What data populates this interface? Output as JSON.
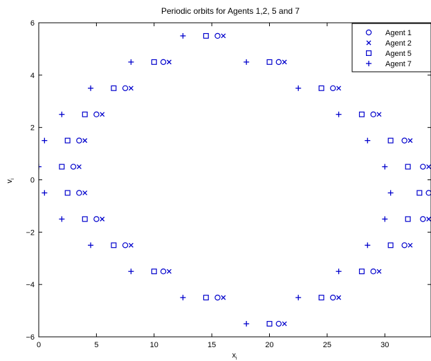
{
  "chart_data": {
    "type": "scatter",
    "title": "Periodic orbits for Agents 1,2, 5 and 7",
    "xlabel": "x",
    "xlabel_sub": "i",
    "ylabel": "v",
    "ylabel_sub": "i",
    "xlim": [
      0,
      34
    ],
    "ylim": [
      -6,
      6
    ],
    "xticks": [
      0,
      5,
      10,
      15,
      20,
      25,
      30
    ],
    "yticks": [
      -6,
      -4,
      -2,
      0,
      2,
      4,
      6
    ],
    "xtick_labels": [
      "0",
      "5",
      "10",
      "15",
      "20",
      "25",
      "30"
    ],
    "ytick_labels": [
      "−6",
      "−4",
      "−2",
      "0",
      "2",
      "4",
      "6"
    ],
    "grid": false,
    "legend_position": "top-right",
    "color": "#0000cc",
    "series": [
      {
        "name": "Agent 1",
        "marker": "circle",
        "x": [
          15.5,
          20.8,
          25.5,
          29.0,
          31.7,
          33.3,
          33.8,
          33.3,
          31.7,
          29.0,
          25.5,
          20.8,
          15.5,
          10.8,
          7.5,
          5.0,
          3.5,
          3.0,
          3.5,
          5.0,
          7.5,
          10.8
        ],
        "y": [
          5.5,
          4.5,
          3.5,
          2.5,
          1.5,
          0.5,
          -0.5,
          -1.5,
          -2.5,
          -3.5,
          -4.5,
          -5.5,
          -4.5,
          -3.5,
          -2.5,
          -1.5,
          -0.5,
          0.5,
          1.5,
          2.5,
          3.5,
          4.5
        ]
      },
      {
        "name": "Agent 2",
        "marker": "x",
        "x": [
          16.0,
          21.3,
          26.0,
          29.5,
          32.2,
          33.8,
          34.3,
          33.8,
          32.2,
          29.5,
          26.0,
          21.3,
          16.0,
          11.3,
          8.0,
          5.5,
          4.0,
          3.5,
          4.0,
          5.5,
          8.0,
          11.3
        ],
        "y": [
          5.5,
          4.5,
          3.5,
          2.5,
          1.5,
          0.5,
          -0.5,
          -1.5,
          -2.5,
          -3.5,
          -4.5,
          -5.5,
          -4.5,
          -3.5,
          -2.5,
          -1.5,
          -0.5,
          0.5,
          1.5,
          2.5,
          3.5,
          4.5
        ]
      },
      {
        "name": "Agent 5",
        "marker": "square",
        "x": [
          14.5,
          20.0,
          24.5,
          28.0,
          30.5,
          32.0,
          33.0,
          32.0,
          30.5,
          28.0,
          24.5,
          20.0,
          14.5,
          10.0,
          6.5,
          4.0,
          2.5,
          2.0,
          2.5,
          4.0,
          6.5,
          10.0
        ],
        "y": [
          5.5,
          4.5,
          3.5,
          2.5,
          1.5,
          0.5,
          -0.5,
          -1.5,
          -2.5,
          -3.5,
          -4.5,
          -5.5,
          -4.5,
          -3.5,
          -2.5,
          -1.5,
          -0.5,
          0.5,
          1.5,
          2.5,
          3.5,
          4.5
        ]
      },
      {
        "name": "Agent 7",
        "marker": "plus",
        "x": [
          12.5,
          18.0,
          22.5,
          26.0,
          28.5,
          30.0,
          30.5,
          30.0,
          28.5,
          26.0,
          22.5,
          18.0,
          12.5,
          8.0,
          4.5,
          2.0,
          0.5,
          0.0,
          0.5,
          2.0,
          4.5,
          8.0
        ],
        "y": [
          5.5,
          4.5,
          3.5,
          2.5,
          1.5,
          0.5,
          -0.5,
          -1.5,
          -2.5,
          -3.5,
          -4.5,
          -5.5,
          -4.5,
          -3.5,
          -2.5,
          -1.5,
          -0.5,
          0.5,
          1.5,
          2.5,
          3.5,
          4.5
        ]
      }
    ]
  }
}
